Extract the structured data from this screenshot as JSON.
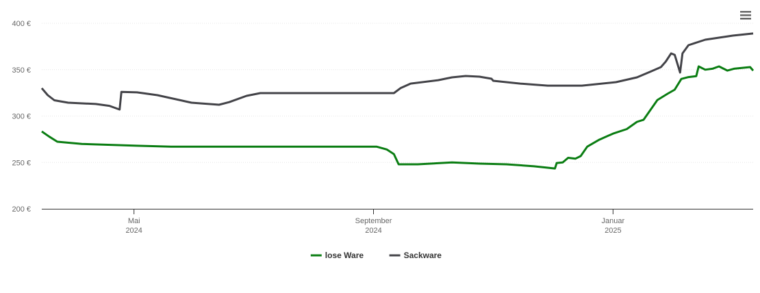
{
  "chart_data": {
    "type": "line",
    "xlim": [
      3.46,
      15.34
    ],
    "xticks": [
      {
        "value": 5,
        "label": "Mai",
        "year": "2024"
      },
      {
        "value": 9,
        "label": "September",
        "year": "2024"
      },
      {
        "value": 13,
        "label": "Januar",
        "year": "2025"
      }
    ],
    "ylim": [
      200,
      400
    ],
    "yticks": [
      {
        "value": 200,
        "label": "200 €"
      },
      {
        "value": 250,
        "label": "250 €"
      },
      {
        "value": 300,
        "label": "300 €"
      },
      {
        "value": 350,
        "label": "350 €"
      },
      {
        "value": 400,
        "label": "400 €"
      }
    ],
    "grid": true,
    "legend": "bottom",
    "series": [
      {
        "name": "lose Ware",
        "color": "#0a7d12",
        "x": [
          3.46,
          3.58,
          3.72,
          4.13,
          5.05,
          5.62,
          9.05,
          9.22,
          9.34,
          9.42,
          9.74,
          10.31,
          10.77,
          11.22,
          11.68,
          12.03,
          12.06,
          12.16,
          12.25,
          12.37,
          12.46,
          12.57,
          12.77,
          13.0,
          13.23,
          13.4,
          13.51,
          13.63,
          13.74,
          13.91,
          14.03,
          14.14,
          14.26,
          14.39,
          14.43,
          14.54,
          14.66,
          14.77,
          14.91,
          15.02,
          15.29,
          15.34
        ],
        "values": [
          283.4,
          278,
          272.3,
          270,
          268,
          267,
          267,
          264,
          259,
          248,
          248,
          250,
          248.7,
          248,
          245.8,
          243.5,
          249.4,
          250,
          255,
          254,
          256.8,
          267,
          274.5,
          281,
          286,
          293.7,
          296,
          307,
          317.3,
          324,
          328.4,
          340,
          342,
          343,
          353.5,
          350,
          351,
          353.5,
          349,
          351,
          352.8,
          349
        ]
      },
      {
        "name": "Sackware",
        "color": "#434348",
        "x": [
          3.46,
          3.56,
          3.67,
          3.9,
          4.36,
          4.59,
          4.76,
          4.79,
          5.05,
          5.39,
          5.96,
          6.42,
          6.59,
          6.88,
          7.11,
          7.33,
          9.34,
          9.45,
          9.62,
          10.08,
          10.31,
          10.54,
          10.77,
          10.97,
          11.0,
          11.45,
          11.91,
          12.48,
          13.05,
          13.4,
          13.63,
          13.8,
          13.88,
          13.97,
          14.03,
          14.12,
          14.16,
          14.26,
          14.54,
          15.0,
          15.34
        ],
        "values": [
          330,
          322.5,
          317,
          314.4,
          313,
          311,
          307,
          326,
          325.5,
          322.5,
          314.4,
          312.2,
          315,
          321.8,
          324.7,
          324.7,
          324.7,
          330,
          335,
          338.7,
          341.7,
          343.2,
          342.4,
          340.2,
          338,
          335,
          332.8,
          332.8,
          336.5,
          341.7,
          348,
          352.8,
          358.7,
          367.5,
          366,
          346.9,
          367.5,
          376.4,
          382.3,
          386.7,
          389
        ]
      }
    ]
  }
}
